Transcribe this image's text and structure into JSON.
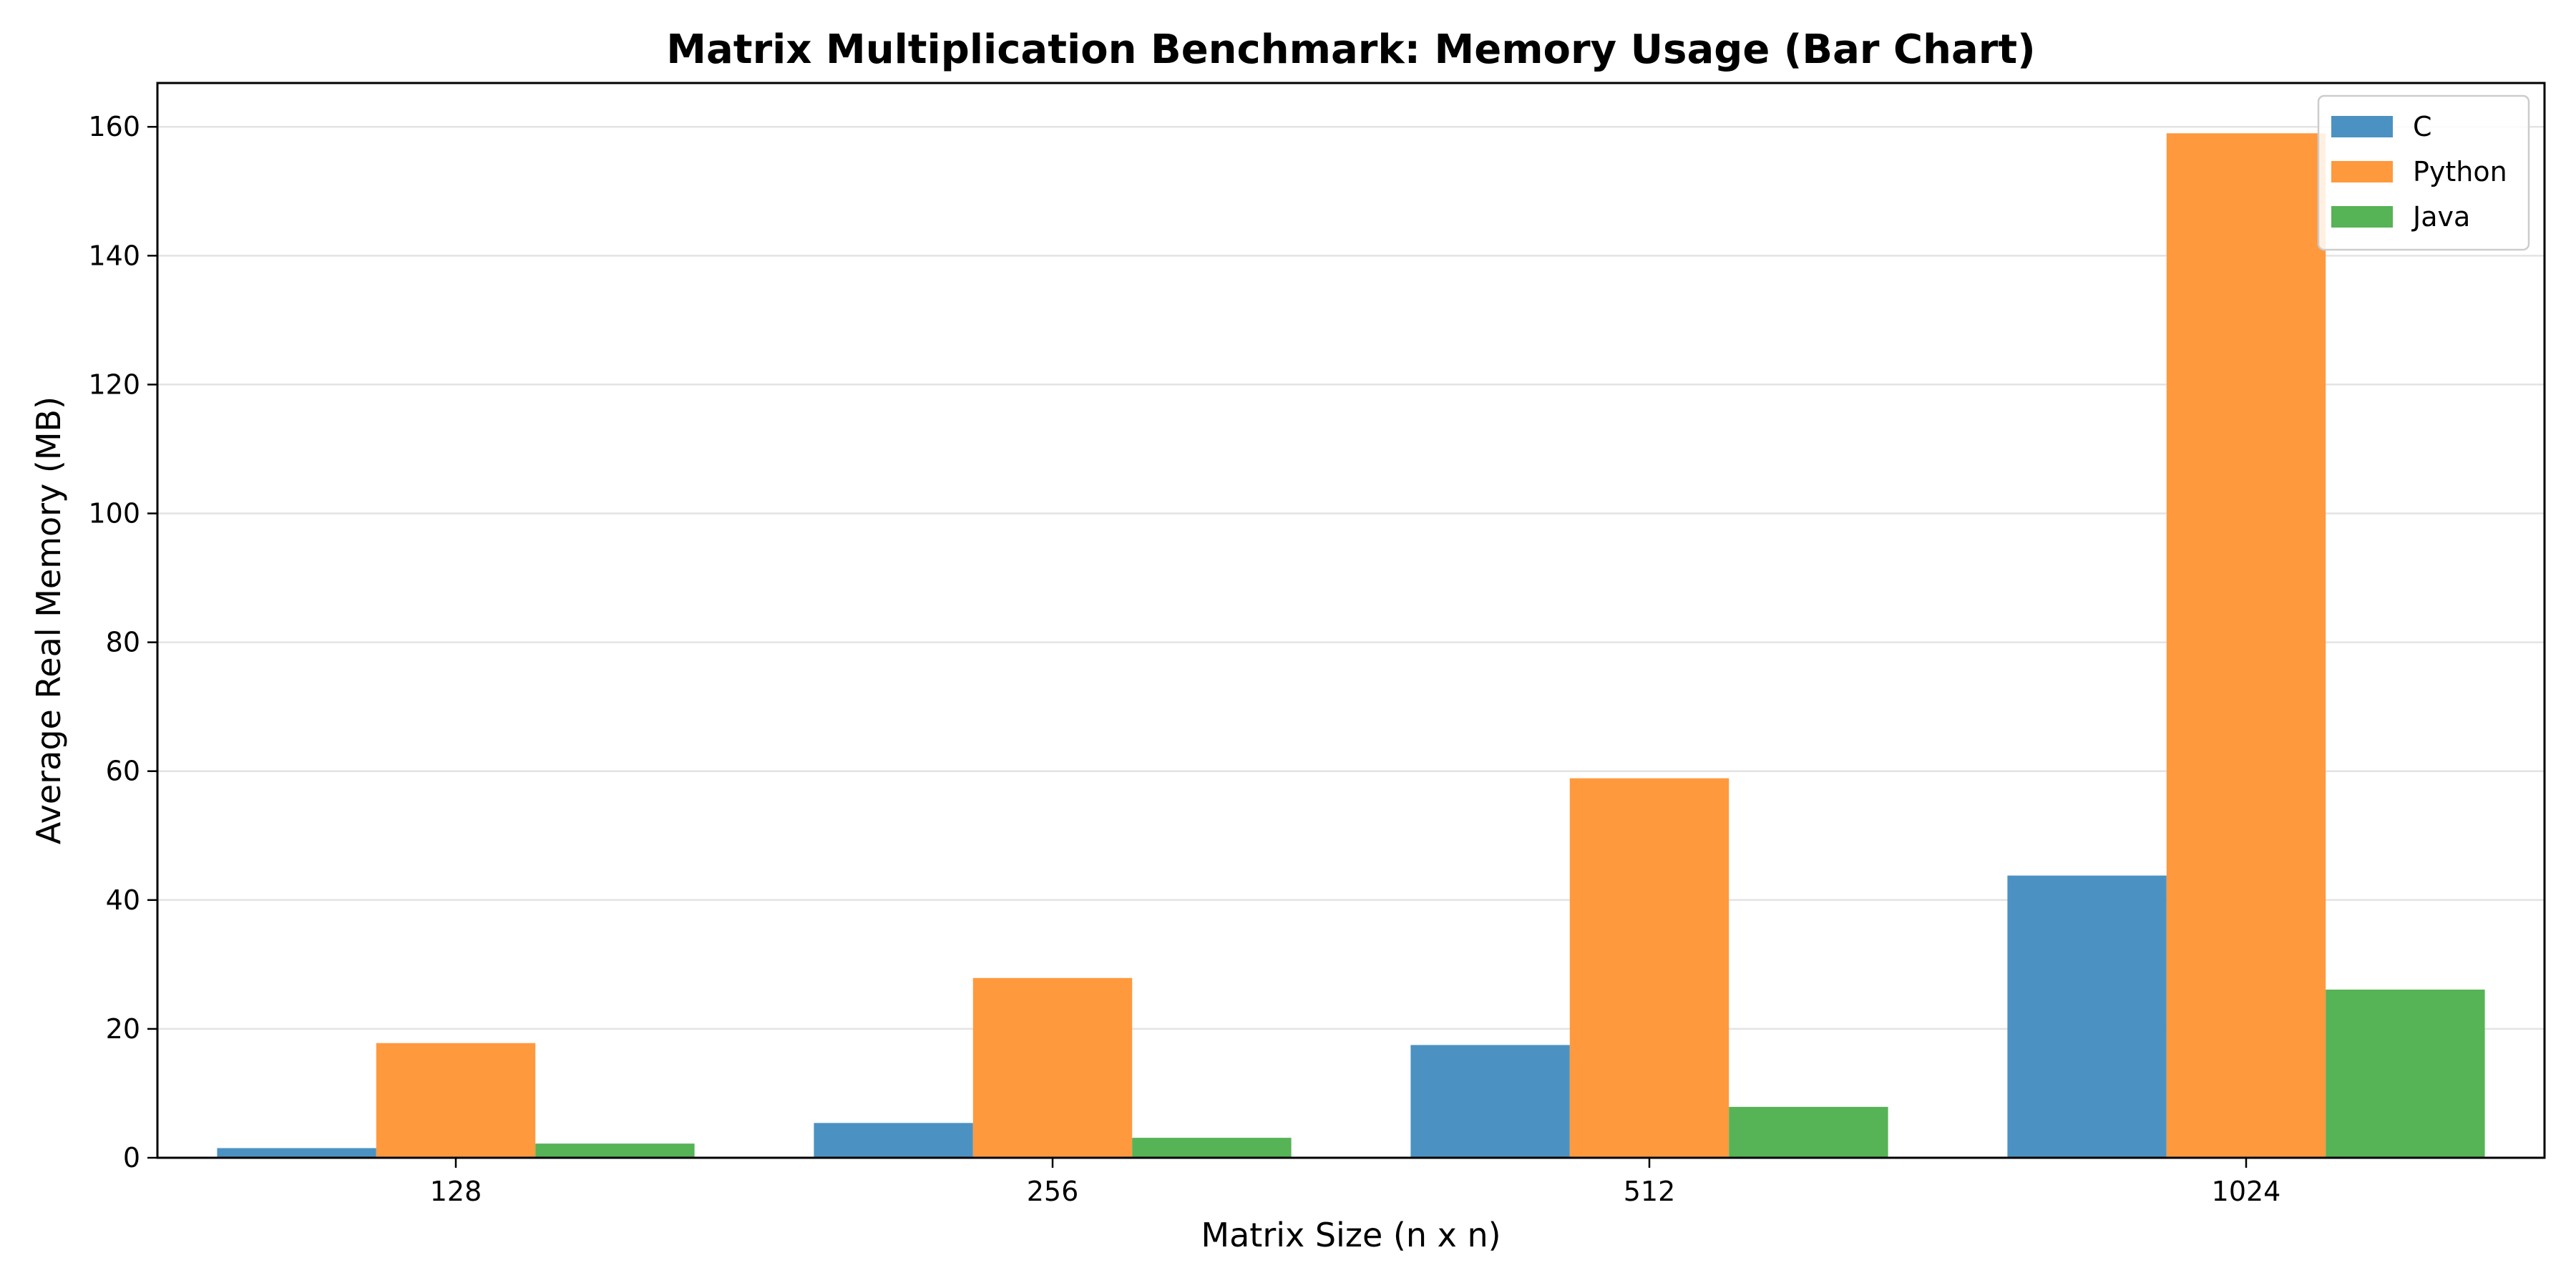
{
  "chart_data": {
    "type": "bar",
    "title": "Matrix Multiplication Benchmark: Memory Usage (Bar Chart)",
    "xlabel": "Matrix Size (n x n)",
    "ylabel": "Average Real Memory (MB)",
    "categories": [
      "128",
      "256",
      "512",
      "1024"
    ],
    "series": [
      {
        "name": "C",
        "color": "#4b92c3",
        "values": [
          1.5,
          5.4,
          17.5,
          43.8
        ]
      },
      {
        "name": "Python",
        "color": "#ff993e",
        "values": [
          17.8,
          27.9,
          58.9,
          159.0
        ]
      },
      {
        "name": "Java",
        "color": "#56b356",
        "values": [
          2.2,
          3.1,
          7.9,
          26.1
        ]
      }
    ],
    "ylim": [
      0,
      166.8
    ],
    "yticks": [
      0,
      20,
      40,
      60,
      80,
      100,
      120,
      140,
      160
    ],
    "grid": "y",
    "legend_position": "top-right"
  }
}
